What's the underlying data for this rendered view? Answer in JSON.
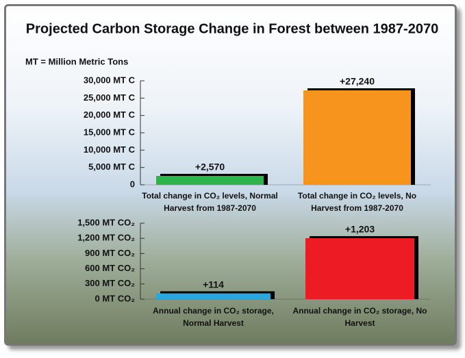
{
  "title": "Projected Carbon Storage Change in Forest between 1987-2070",
  "note": "MT = Million Metric Tons",
  "chart_data": [
    {
      "type": "bar",
      "categories": [
        "Total change in CO₂ levels, Normal Harvest from 1987-2070",
        "Total change in CO₂ levels, No Harvest from 1987-2070"
      ],
      "values": [
        2570,
        27240
      ],
      "value_labels": [
        "+2,570",
        "+27,240"
      ],
      "colors": [
        "#2fb34b",
        "#f7941d"
      ],
      "ylim": [
        0,
        30000
      ],
      "yticks": [
        0,
        {
          "value": 5000,
          "label": "5,000 MT C"
        },
        {
          "value": 10000,
          "label": "10,000 MT C"
        },
        {
          "value": 15000,
          "label": "15,000 MT C"
        },
        {
          "value": 20000,
          "label": "20,000 MT C"
        },
        {
          "value": 25000,
          "label": "25,000 MT C"
        },
        {
          "value": 30000,
          "label": "30,000 MT C"
        }
      ]
    },
    {
      "type": "bar",
      "categories": [
        "Annual change in CO₂ storage, Normal Harvest",
        "Annual change in CO₂ storage, No Harvest"
      ],
      "values": [
        114,
        1203
      ],
      "value_labels": [
        "+114",
        "+1,203"
      ],
      "colors": [
        "#29a8e0",
        "#ed1c24"
      ],
      "ylim": [
        0,
        1500
      ],
      "yticks": [
        {
          "value": 0,
          "label": "0 MT CO₂"
        },
        {
          "value": 300,
          "label": "300 MT CO₂"
        },
        {
          "value": 600,
          "label": "600 MT CO₂"
        },
        {
          "value": 900,
          "label": "900 MT CO₂"
        },
        {
          "value": 1200,
          "label": "1,200 MT CO₂"
        },
        {
          "value": 1500,
          "label": "1,500 MT CO₂"
        }
      ]
    }
  ]
}
